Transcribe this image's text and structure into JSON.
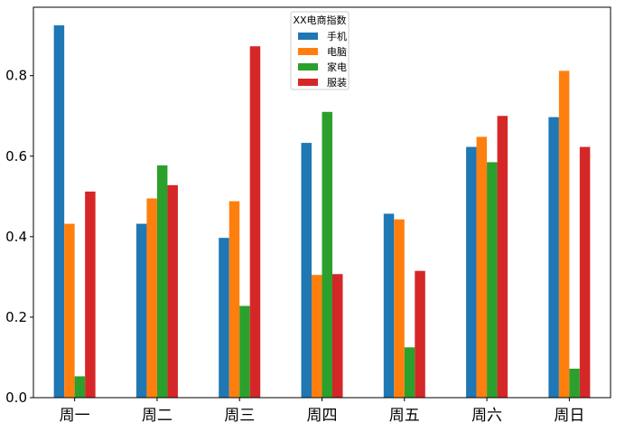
{
  "chart_data": {
    "type": "bar",
    "title": "",
    "xlabel": "",
    "ylabel": "",
    "categories": [
      "周一",
      "周二",
      "周三",
      "周四",
      "周五",
      "周六",
      "周日"
    ],
    "series": [
      {
        "name": "手机",
        "color": "#1f77b4",
        "values": [
          0.925,
          0.432,
          0.397,
          0.633,
          0.457,
          0.623,
          0.697
        ]
      },
      {
        "name": "电脑",
        "color": "#ff7f0e",
        "values": [
          0.432,
          0.495,
          0.488,
          0.305,
          0.443,
          0.648,
          0.812
        ]
      },
      {
        "name": "家电",
        "color": "#2ca02c",
        "values": [
          0.053,
          0.577,
          0.228,
          0.71,
          0.125,
          0.585,
          0.072
        ]
      },
      {
        "name": "服装",
        "color": "#d62728",
        "values": [
          0.512,
          0.528,
          0.873,
          0.307,
          0.315,
          0.7,
          0.623
        ]
      }
    ],
    "yticks": [
      "0.0",
      "0.2",
      "0.4",
      "0.6",
      "0.8"
    ],
    "ylim": [
      0,
      0.97
    ],
    "legend": {
      "title": "XX电商指数",
      "position": "top-center"
    },
    "grid": false
  }
}
